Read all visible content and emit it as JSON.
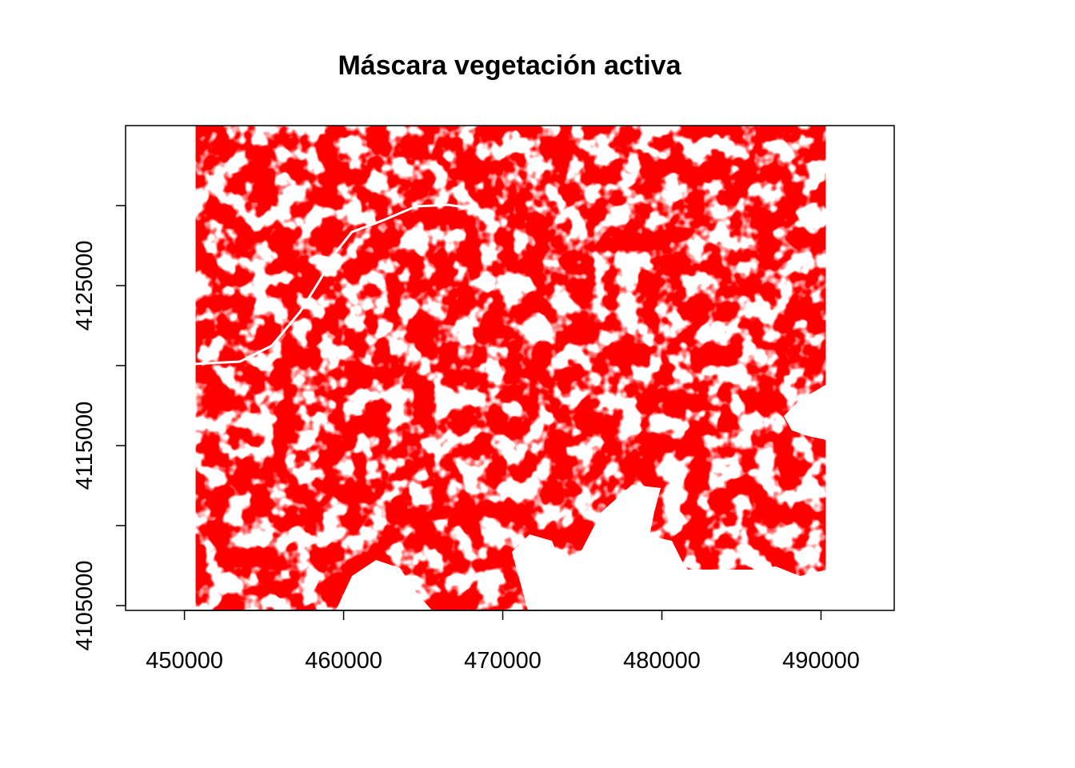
{
  "chart_data": {
    "type": "heatmap",
    "title": "Máscara vegetación activa",
    "xlabel": "",
    "ylabel": "",
    "xlim": [
      446300,
      494600
    ],
    "ylim": [
      4104700,
      4135000
    ],
    "raster_extent": {
      "x": [
        450700,
        490300
      ],
      "y": [
        4104500,
        4135000
      ]
    },
    "mask_color": "#ff0000",
    "background_color": "#ffffff",
    "x_ticks": [
      450000,
      460000,
      470000,
      480000,
      490000
    ],
    "x_tick_labels": [
      "450000",
      "460000",
      "470000",
      "480000",
      "490000"
    ],
    "y_ticks": [
      4105000,
      4110000,
      4115000,
      4120000,
      4125000,
      4130000
    ],
    "y_tick_labels": [
      "4105000",
      "",
      "4115000",
      "",
      "4125000",
      ""
    ],
    "grid": false,
    "legend": "none"
  }
}
